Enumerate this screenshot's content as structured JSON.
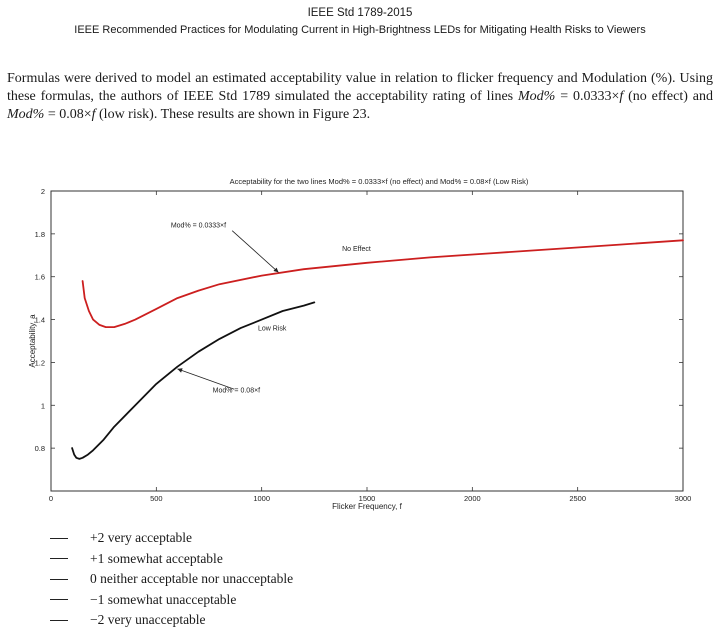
{
  "header": {
    "standard": "IEEE Std 1789-2015",
    "title": "IEEE Recommended Practices for Modulating Current in High-Brightness LEDs for Mitigating Health Risks to Viewers"
  },
  "paragraph": {
    "part1": "Formulas were derived to model an estimated acceptability value in relation to flicker frequency and Modulation (%). Using these formulas, the authors of IEEE Std 1789 simulated the acceptability rating of lines ",
    "mod1": "Mod%",
    "eq1": " = 0.0333×",
    "f1": "f",
    "part2": " (no effect) and ",
    "mod2": "Mod%",
    "eq2": " = 0.08×",
    "f2": "f",
    "part3": " (low risk). These results are shown in Figure 23."
  },
  "chart_data": {
    "type": "line",
    "title": "Acceptability for the two lines Mod% = 0.0333×f (no effect) and Mod% = 0.08×f (Low Risk)",
    "xlabel": "Flicker Frequency, f",
    "ylabel": "Acceptability, a",
    "xlim": [
      0,
      3000
    ],
    "ylim": [
      0.6,
      2
    ],
    "xticks": [
      0,
      500,
      1000,
      1500,
      2000,
      2500,
      3000
    ],
    "yticks": [
      0.8,
      1,
      1.2,
      1.4,
      1.6,
      1.8,
      2
    ],
    "ytick_labels": [
      "0.8",
      "1",
      "1.2",
      "1.4",
      "1.6",
      "1.8",
      "2"
    ],
    "grid": false,
    "series": [
      {
        "color": "#cc1f1f",
        "x": [
          150,
          160,
          180,
          200,
          230,
          260,
          300,
          350,
          400,
          500,
          600,
          700,
          800,
          1000,
          1200,
          1500,
          1800,
          2100,
          2400,
          2700,
          3000
        ],
        "y": [
          1.58,
          1.5,
          1.44,
          1.4,
          1.375,
          1.365,
          1.365,
          1.38,
          1.4,
          1.45,
          1.5,
          1.535,
          1.565,
          1.605,
          1.635,
          1.665,
          1.69,
          1.71,
          1.73,
          1.75,
          1.77
        ]
      },
      {
        "color": "#111111",
        "x": [
          100,
          110,
          120,
          135,
          150,
          175,
          200,
          250,
          300,
          400,
          500,
          600,
          700,
          800,
          900,
          1000,
          1100,
          1200,
          1250
        ],
        "y": [
          0.8,
          0.77,
          0.755,
          0.75,
          0.755,
          0.77,
          0.79,
          0.84,
          0.9,
          1.0,
          1.1,
          1.18,
          1.25,
          1.31,
          1.36,
          1.4,
          1.44,
          1.465,
          1.48
        ]
      }
    ],
    "annotations": [
      {
        "text": "Mod% = 0.0333×f",
        "x": 700,
        "y": 1.83
      },
      {
        "text": "No Effect",
        "x": 1450,
        "y": 1.72
      },
      {
        "text": "Low Risk",
        "x": 1050,
        "y": 1.35
      },
      {
        "text": "Mod% = 0.08×f",
        "x": 880,
        "y": 1.06
      }
    ]
  },
  "legend": [
    "+2 very acceptable",
    "+1 somewhat acceptable",
    "0 neither acceptable nor unacceptable",
    "−1 somewhat unacceptable",
    "−2 very unacceptable"
  ]
}
